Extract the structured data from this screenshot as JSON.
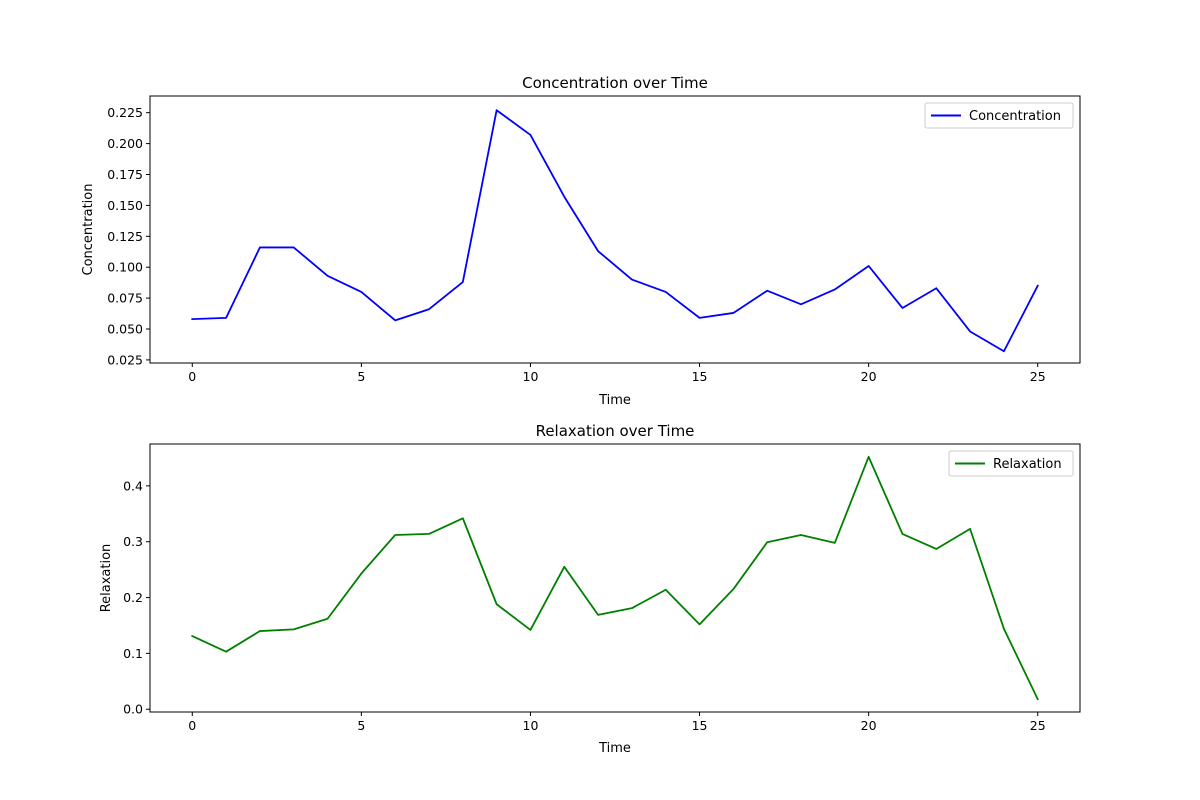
{
  "chart_data": [
    {
      "type": "line",
      "title": "Concentration over Time",
      "xlabel": "Time",
      "ylabel": "Concentration",
      "xlim": [
        -1.25,
        26.25
      ],
      "ylim": [
        0.0225,
        0.2385
      ],
      "xticks": [
        0,
        5,
        10,
        15,
        20,
        25
      ],
      "yticks": [
        0.025,
        0.05,
        0.075,
        0.1,
        0.125,
        0.15,
        0.175,
        0.2,
        0.225
      ],
      "ytick_labels": [
        "0.025",
        "0.050",
        "0.075",
        "0.100",
        "0.125",
        "0.150",
        "0.175",
        "0.200",
        "0.225"
      ],
      "grid": false,
      "legend": "top-right",
      "series": [
        {
          "name": "Concentration",
          "color": "#0000ff",
          "x": [
            0,
            1,
            2,
            3,
            4,
            5,
            6,
            7,
            8,
            9,
            10,
            11,
            12,
            13,
            14,
            15,
            16,
            17,
            18,
            19,
            20,
            21,
            22,
            23,
            24,
            25
          ],
          "values": [
            0.058,
            0.059,
            0.116,
            0.116,
            0.093,
            0.08,
            0.057,
            0.066,
            0.088,
            0.227,
            0.207,
            0.157,
            0.113,
            0.09,
            0.08,
            0.059,
            0.063,
            0.081,
            0.07,
            0.082,
            0.101,
            0.067,
            0.083,
            0.048,
            0.032,
            0.085
          ]
        }
      ]
    },
    {
      "type": "line",
      "title": "Relaxation over Time",
      "xlabel": "Time",
      "ylabel": "Relaxation",
      "xlim": [
        -1.25,
        26.25
      ],
      "ylim": [
        -0.005,
        0.475
      ],
      "xticks": [
        0,
        5,
        10,
        15,
        20,
        25
      ],
      "yticks": [
        0.0,
        0.1,
        0.2,
        0.3,
        0.4
      ],
      "ytick_labels": [
        "0.0",
        "0.1",
        "0.2",
        "0.3",
        "0.4"
      ],
      "grid": false,
      "legend": "top-right",
      "series": [
        {
          "name": "Relaxation",
          "color": "#008000",
          "x": [
            0,
            1,
            2,
            3,
            4,
            5,
            6,
            7,
            8,
            9,
            10,
            11,
            12,
            13,
            14,
            15,
            16,
            17,
            18,
            19,
            20,
            21,
            22,
            23,
            24,
            25
          ],
          "values": [
            0.131,
            0.103,
            0.14,
            0.143,
            0.162,
            0.243,
            0.312,
            0.314,
            0.342,
            0.188,
            0.142,
            0.255,
            0.169,
            0.181,
            0.214,
            0.152,
            0.215,
            0.299,
            0.312,
            0.298,
            0.452,
            0.314,
            0.287,
            0.323,
            0.144,
            0.018
          ]
        }
      ]
    }
  ]
}
